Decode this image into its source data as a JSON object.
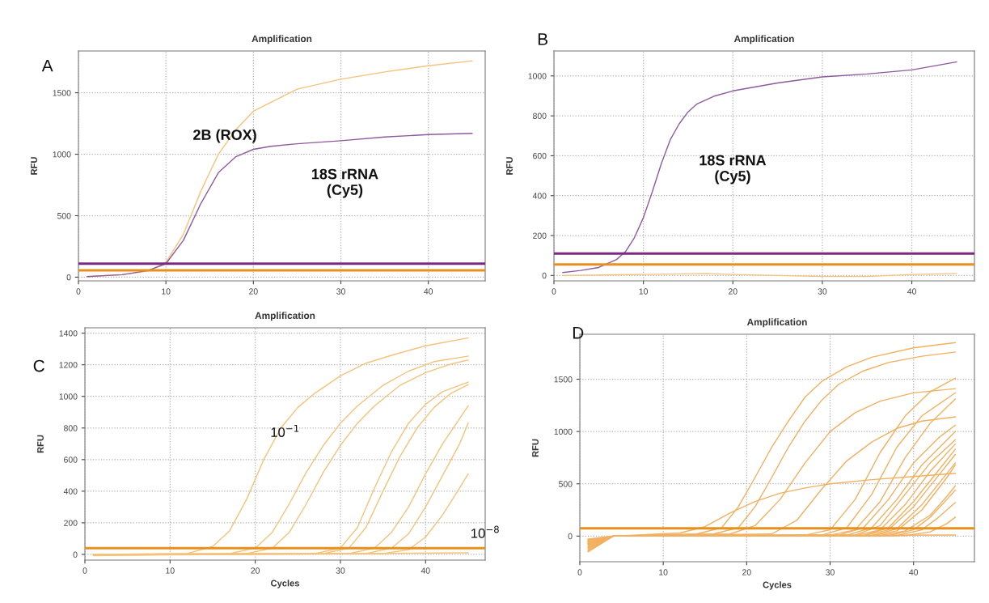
{
  "chart_data": [
    {
      "type": "line",
      "title": "Amplification",
      "ylabel": "RFU",
      "xlim": [
        0,
        46.5
      ],
      "ylim": [
        -30,
        1840
      ],
      "xticks": [
        0,
        10,
        20,
        30,
        40
      ],
      "yticks": [
        0,
        500,
        1000,
        1500
      ],
      "grid": true,
      "annotations": [
        "A",
        "2B (ROX)",
        "18S rRNA\n(Cy5)"
      ],
      "ref_lines": [
        {
          "axis": "y",
          "value": 110,
          "color": "#7b2a84"
        },
        {
          "axis": "y",
          "value": 55,
          "color": "#e8901e"
        }
      ],
      "series": [
        {
          "color": "#f5c27a",
          "x": [
            1,
            5,
            8,
            10,
            12,
            14,
            16,
            18,
            20,
            25,
            30,
            35,
            40,
            45
          ],
          "values": [
            5,
            20,
            50,
            120,
            350,
            700,
            1000,
            1200,
            1350,
            1530,
            1610,
            1670,
            1720,
            1760
          ]
        },
        {
          "color": "#8e5a9e",
          "x": [
            1,
            5,
            8,
            10,
            12,
            14,
            16,
            18,
            20,
            22,
            25,
            30,
            35,
            40,
            45
          ],
          "values": [
            5,
            20,
            55,
            110,
            300,
            600,
            850,
            980,
            1040,
            1065,
            1085,
            1110,
            1140,
            1160,
            1170
          ]
        }
      ]
    },
    {
      "type": "line",
      "title": "Amplification",
      "ylabel": "RFU",
      "xlim": [
        0,
        47
      ],
      "ylim": [
        -27,
        1125
      ],
      "xticks": [
        0,
        10,
        20,
        30,
        40
      ],
      "yticks": [
        0,
        200,
        400,
        600,
        800,
        1000
      ],
      "grid": true,
      "annotations": [
        "B",
        "18S rRNA\n(Cy5)"
      ],
      "ref_lines": [
        {
          "axis": "y",
          "value": 110,
          "color": "#7b2a84"
        },
        {
          "axis": "y",
          "value": 55,
          "color": "#e8901e"
        }
      ],
      "series": [
        {
          "color": "#8e5a9e",
          "x": [
            1,
            3,
            5,
            7,
            8,
            9,
            10,
            11,
            12,
            13,
            14,
            15,
            16,
            18,
            20,
            25,
            30,
            35,
            40,
            45
          ],
          "values": [
            15,
            25,
            40,
            80,
            120,
            190,
            290,
            420,
            560,
            680,
            760,
            820,
            860,
            900,
            925,
            965,
            995,
            1010,
            1030,
            1070
          ]
        },
        {
          "color": "#f5c27a",
          "x": [
            1,
            10,
            17,
            20,
            25,
            30,
            35,
            40,
            45
          ],
          "values": [
            0,
            5,
            10,
            5,
            0,
            -5,
            -5,
            5,
            10
          ]
        }
      ]
    },
    {
      "type": "line",
      "title": "Amplification",
      "xlabel": "Cycles",
      "ylabel": "RFU",
      "xlim": [
        0,
        47
      ],
      "ylim": [
        -36,
        1434
      ],
      "xticks": [
        0,
        10,
        20,
        30,
        40
      ],
      "yticks": [
        0,
        200,
        400,
        600,
        800,
        1000,
        1200,
        1400
      ],
      "grid": true,
      "annotations": [
        "C",
        "10$^{−1}$",
        "10$^{−8}$"
      ],
      "ref_lines": [
        {
          "axis": "y",
          "value": 40,
          "color": "#e8901e"
        }
      ],
      "series": [
        {
          "color": "#f5c27a",
          "x": [
            1,
            12,
            15,
            17,
            19,
            21,
            23,
            25,
            27,
            30,
            33,
            36,
            40,
            45
          ],
          "values": [
            0,
            5,
            50,
            150,
            350,
            600,
            800,
            930,
            1020,
            1130,
            1210,
            1260,
            1320,
            1370
          ]
        },
        {
          "color": "#f5c27a",
          "x": [
            1,
            17,
            20,
            22,
            24,
            26,
            28,
            30,
            32,
            35,
            38,
            41,
            45
          ],
          "values": [
            0,
            5,
            40,
            140,
            320,
            520,
            690,
            830,
            940,
            1070,
            1160,
            1220,
            1255
          ]
        },
        {
          "color": "#f5c27a",
          "x": [
            1,
            19,
            22,
            24,
            26,
            28,
            30,
            32,
            34,
            37,
            40,
            43,
            45
          ],
          "values": [
            -8,
            5,
            40,
            140,
            320,
            520,
            690,
            830,
            940,
            1070,
            1150,
            1205,
            1230
          ]
        },
        {
          "color": "#f5c27a",
          "x": [
            1,
            27,
            30,
            32,
            34,
            36,
            38,
            40,
            42,
            45
          ],
          "values": [
            0,
            5,
            40,
            170,
            420,
            650,
            830,
            950,
            1030,
            1090
          ]
        },
        {
          "color": "#f5c27a",
          "x": [
            1,
            28,
            31,
            33,
            35,
            37,
            39,
            41,
            43,
            45
          ],
          "values": [
            0,
            5,
            40,
            170,
            400,
            620,
            800,
            930,
            1020,
            1075
          ]
        },
        {
          "color": "#f5c27a",
          "x": [
            1,
            31,
            34,
            36,
            38,
            40,
            42,
            44,
            45
          ],
          "values": [
            0,
            5,
            40,
            140,
            300,
            510,
            700,
            860,
            940
          ]
        },
        {
          "color": "#f5c27a",
          "x": [
            1,
            33,
            36,
            38,
            40,
            42,
            44,
            45
          ],
          "values": [
            0,
            5,
            40,
            130,
            300,
            500,
            700,
            830
          ]
        },
        {
          "color": "#f5c27a",
          "x": [
            1,
            35,
            38,
            40,
            42,
            44,
            45
          ],
          "values": [
            0,
            5,
            30,
            110,
            250,
            420,
            510
          ]
        },
        {
          "color": "#f5c27a",
          "x": [
            1,
            20,
            45
          ],
          "values": [
            -5,
            0,
            10
          ]
        }
      ]
    },
    {
      "type": "line",
      "title": "Amplification",
      "xlabel": "Cycles",
      "ylabel": "RFU",
      "xlim": [
        0,
        47.3
      ],
      "ylim": [
        -245,
        1930
      ],
      "xticks": [
        0,
        10,
        20,
        30,
        40
      ],
      "yticks": [
        0,
        500,
        1000,
        1500
      ],
      "grid": true,
      "annotations": [
        "D"
      ],
      "ref_lines": [
        {
          "axis": "y",
          "value": 75,
          "color": "#e8901e"
        }
      ],
      "series": [
        {
          "color": "#f2b060",
          "x": [
            1,
            4,
            14,
            17,
            19,
            21,
            23,
            25,
            27,
            29,
            32,
            35,
            40,
            45
          ],
          "values": [
            -30,
            0,
            20,
            80,
            280,
            560,
            850,
            1100,
            1330,
            1480,
            1620,
            1710,
            1800,
            1850
          ]
        },
        {
          "color": "#f2b060",
          "x": [
            1,
            4,
            16,
            19,
            21,
            23,
            25,
            27,
            29,
            31,
            34,
            37,
            41,
            45
          ],
          "values": [
            -30,
            0,
            20,
            80,
            280,
            560,
            850,
            1100,
            1300,
            1450,
            1580,
            1660,
            1720,
            1760
          ]
        },
        {
          "color": "#f2b060",
          "x": [
            1,
            4,
            18,
            21,
            24,
            27,
            30,
            33,
            36,
            40,
            45
          ],
          "values": [
            -60,
            0,
            20,
            100,
            350,
            700,
            1000,
            1180,
            1290,
            1370,
            1410
          ]
        },
        {
          "color": "#f2b060",
          "x": [
            1,
            4,
            12,
            15,
            18,
            21,
            24,
            27,
            30,
            35,
            40,
            45
          ],
          "values": [
            -40,
            0,
            30,
            90,
            220,
            330,
            410,
            460,
            500,
            540,
            570,
            600
          ]
        },
        {
          "color": "#f2b060",
          "x": [
            1,
            4,
            23,
            26,
            29,
            32,
            35,
            38,
            41,
            45
          ],
          "values": [
            -50,
            0,
            20,
            150,
            450,
            720,
            900,
            1030,
            1100,
            1140
          ]
        },
        {
          "color": "#f2b060",
          "x": [
            1,
            4,
            27,
            30,
            33,
            36,
            39,
            42,
            45
          ],
          "values": [
            -80,
            0,
            10,
            60,
            350,
            800,
            1150,
            1380,
            1510
          ]
        },
        {
          "color": "#f2b060",
          "x": [
            1,
            4,
            29,
            32,
            35,
            38,
            41,
            45
          ],
          "values": [
            -100,
            0,
            10,
            80,
            400,
            850,
            1150,
            1370
          ]
        },
        {
          "color": "#f2b060",
          "x": [
            1,
            4,
            30,
            33,
            36,
            39,
            42,
            45
          ],
          "values": [
            -120,
            0,
            10,
            60,
            330,
            750,
            1080,
            1310
          ]
        },
        {
          "color": "#f2b060",
          "x": [
            1,
            4,
            31,
            34,
            37,
            40,
            43,
            45
          ],
          "values": [
            -140,
            0,
            10,
            80,
            350,
            700,
            940,
            1060
          ]
        },
        {
          "color": "#f2b060",
          "x": [
            1,
            4,
            32,
            35,
            38,
            41,
            45
          ],
          "values": [
            -150,
            0,
            10,
            80,
            350,
            680,
            1000
          ]
        },
        {
          "color": "#f2b060",
          "x": [
            1,
            4,
            33,
            36,
            39,
            42,
            45
          ],
          "values": [
            -90,
            0,
            10,
            100,
            400,
            700,
            920
          ]
        },
        {
          "color": "#f2b060",
          "x": [
            1,
            4,
            33,
            36,
            39,
            42,
            45
          ],
          "values": [
            -70,
            0,
            5,
            60,
            300,
            620,
            880
          ]
        },
        {
          "color": "#f2b060",
          "x": [
            1,
            4,
            34,
            37,
            40,
            43,
            45
          ],
          "values": [
            -110,
            0,
            5,
            80,
            330,
            630,
            830
          ]
        },
        {
          "color": "#f2b060",
          "x": [
            1,
            4,
            34,
            37,
            40,
            43,
            45
          ],
          "values": [
            -60,
            0,
            5,
            60,
            280,
            580,
            780
          ]
        },
        {
          "color": "#f2b060",
          "x": [
            1,
            4,
            35,
            38,
            41,
            44,
            45
          ],
          "values": [
            -130,
            0,
            5,
            70,
            300,
            600,
            700
          ]
        },
        {
          "color": "#f2b060",
          "x": [
            1,
            4,
            35,
            38,
            41,
            44,
            45
          ],
          "values": [
            -50,
            0,
            5,
            50,
            250,
            560,
            680
          ]
        },
        {
          "color": "#f2b060",
          "x": [
            1,
            4,
            36,
            39,
            42,
            44,
            45
          ],
          "values": [
            -80,
            0,
            5,
            50,
            200,
            380,
            480
          ]
        },
        {
          "color": "#f2b060",
          "x": [
            1,
            4,
            37,
            40,
            42,
            44,
            45
          ],
          "values": [
            -100,
            0,
            5,
            60,
            180,
            350,
            440
          ]
        },
        {
          "color": "#f2b060",
          "x": [
            1,
            4,
            38,
            41,
            43,
            45
          ],
          "values": [
            -60,
            0,
            5,
            60,
            180,
            320
          ]
        },
        {
          "color": "#f2b060",
          "x": [
            1,
            4,
            39,
            42,
            44,
            45
          ],
          "values": [
            -70,
            0,
            5,
            40,
            120,
            180
          ]
        },
        {
          "color": "#f2b060",
          "x": [
            1,
            4,
            20,
            45
          ],
          "values": [
            -40,
            0,
            5,
            10
          ]
        }
      ]
    }
  ]
}
